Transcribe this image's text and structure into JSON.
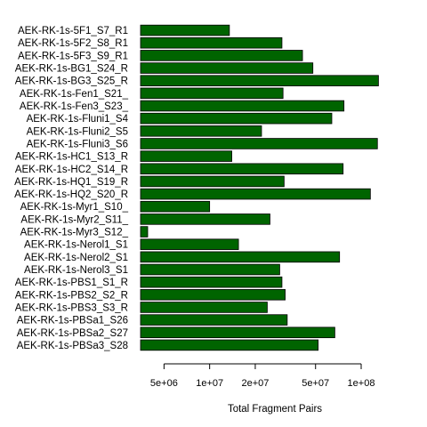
{
  "chart_data": {
    "type": "bar",
    "orientation": "horizontal",
    "scale": "log",
    "xlabel": "Total Fragment Pairs",
    "bar_color": "#006400",
    "xlim": [
      3500000,
      150000000
    ],
    "ticks": [
      {
        "value": 5000000,
        "label": "5e+06"
      },
      {
        "value": 10000000,
        "label": "1e+07"
      },
      {
        "value": 20000000,
        "label": "2e+07"
      },
      {
        "value": 50000000,
        "label": "5e+07"
      },
      {
        "value": 100000000,
        "label": "1e+08"
      }
    ],
    "categories": [
      "AEK-RK-1s-5F1_S7_R1",
      "AEK-RK-1s-5F2_S8_R1",
      "AEK-RK-1s-5F3_S9_R1",
      "AEK-RK-1s-BG1_S24_R",
      "AEK-RK-1s-BG3_S25_R",
      "AEK-RK-1s-Fen1_S21_",
      "AEK-RK-1s-Fen3_S23_",
      "AEK-RK-1s-Fluni1_S4",
      "AEK-RK-1s-Fluni2_S5",
      "AEK-RK-1s-Fluni3_S6",
      "AEK-RK-1s-HC1_S13_R",
      "AEK-RK-1s-HC2_S14_R",
      "AEK-RK-1s-HQ1_S19_R",
      "AEK-RK-1s-HQ2_S20_R",
      "AEK-RK-1s-Myr1_S10_",
      "AEK-RK-1s-Myr2_S11_",
      "AEK-RK-1s-Myr3_S12_",
      "AEK-RK-1s-Nerol1_S1",
      "AEK-RK-1s-Nerol2_S1",
      "AEK-RK-1s-Nerol3_S1",
      "AEK-RK-1s-PBS1_S1_R",
      "AEK-RK-1s-PBS2_S2_R",
      "AEK-RK-1s-PBS3_S3_R",
      "AEK-RK-1s-PBSa1_S26",
      "AEK-RK-1s-PBSa2_S27",
      "AEK-RK-1s-PBSa3_S28"
    ],
    "values": [
      13500000,
      30000000,
      41000000,
      48000000,
      130000000,
      30500000,
      77000000,
      64000000,
      22000000,
      128000000,
      14000000,
      76000000,
      31000000,
      115000000,
      10000000,
      25000000,
      3900000,
      15500000,
      72000000,
      29000000,
      30000000,
      31500000,
      24000000,
      32500000,
      67000000,
      52000000
    ]
  }
}
